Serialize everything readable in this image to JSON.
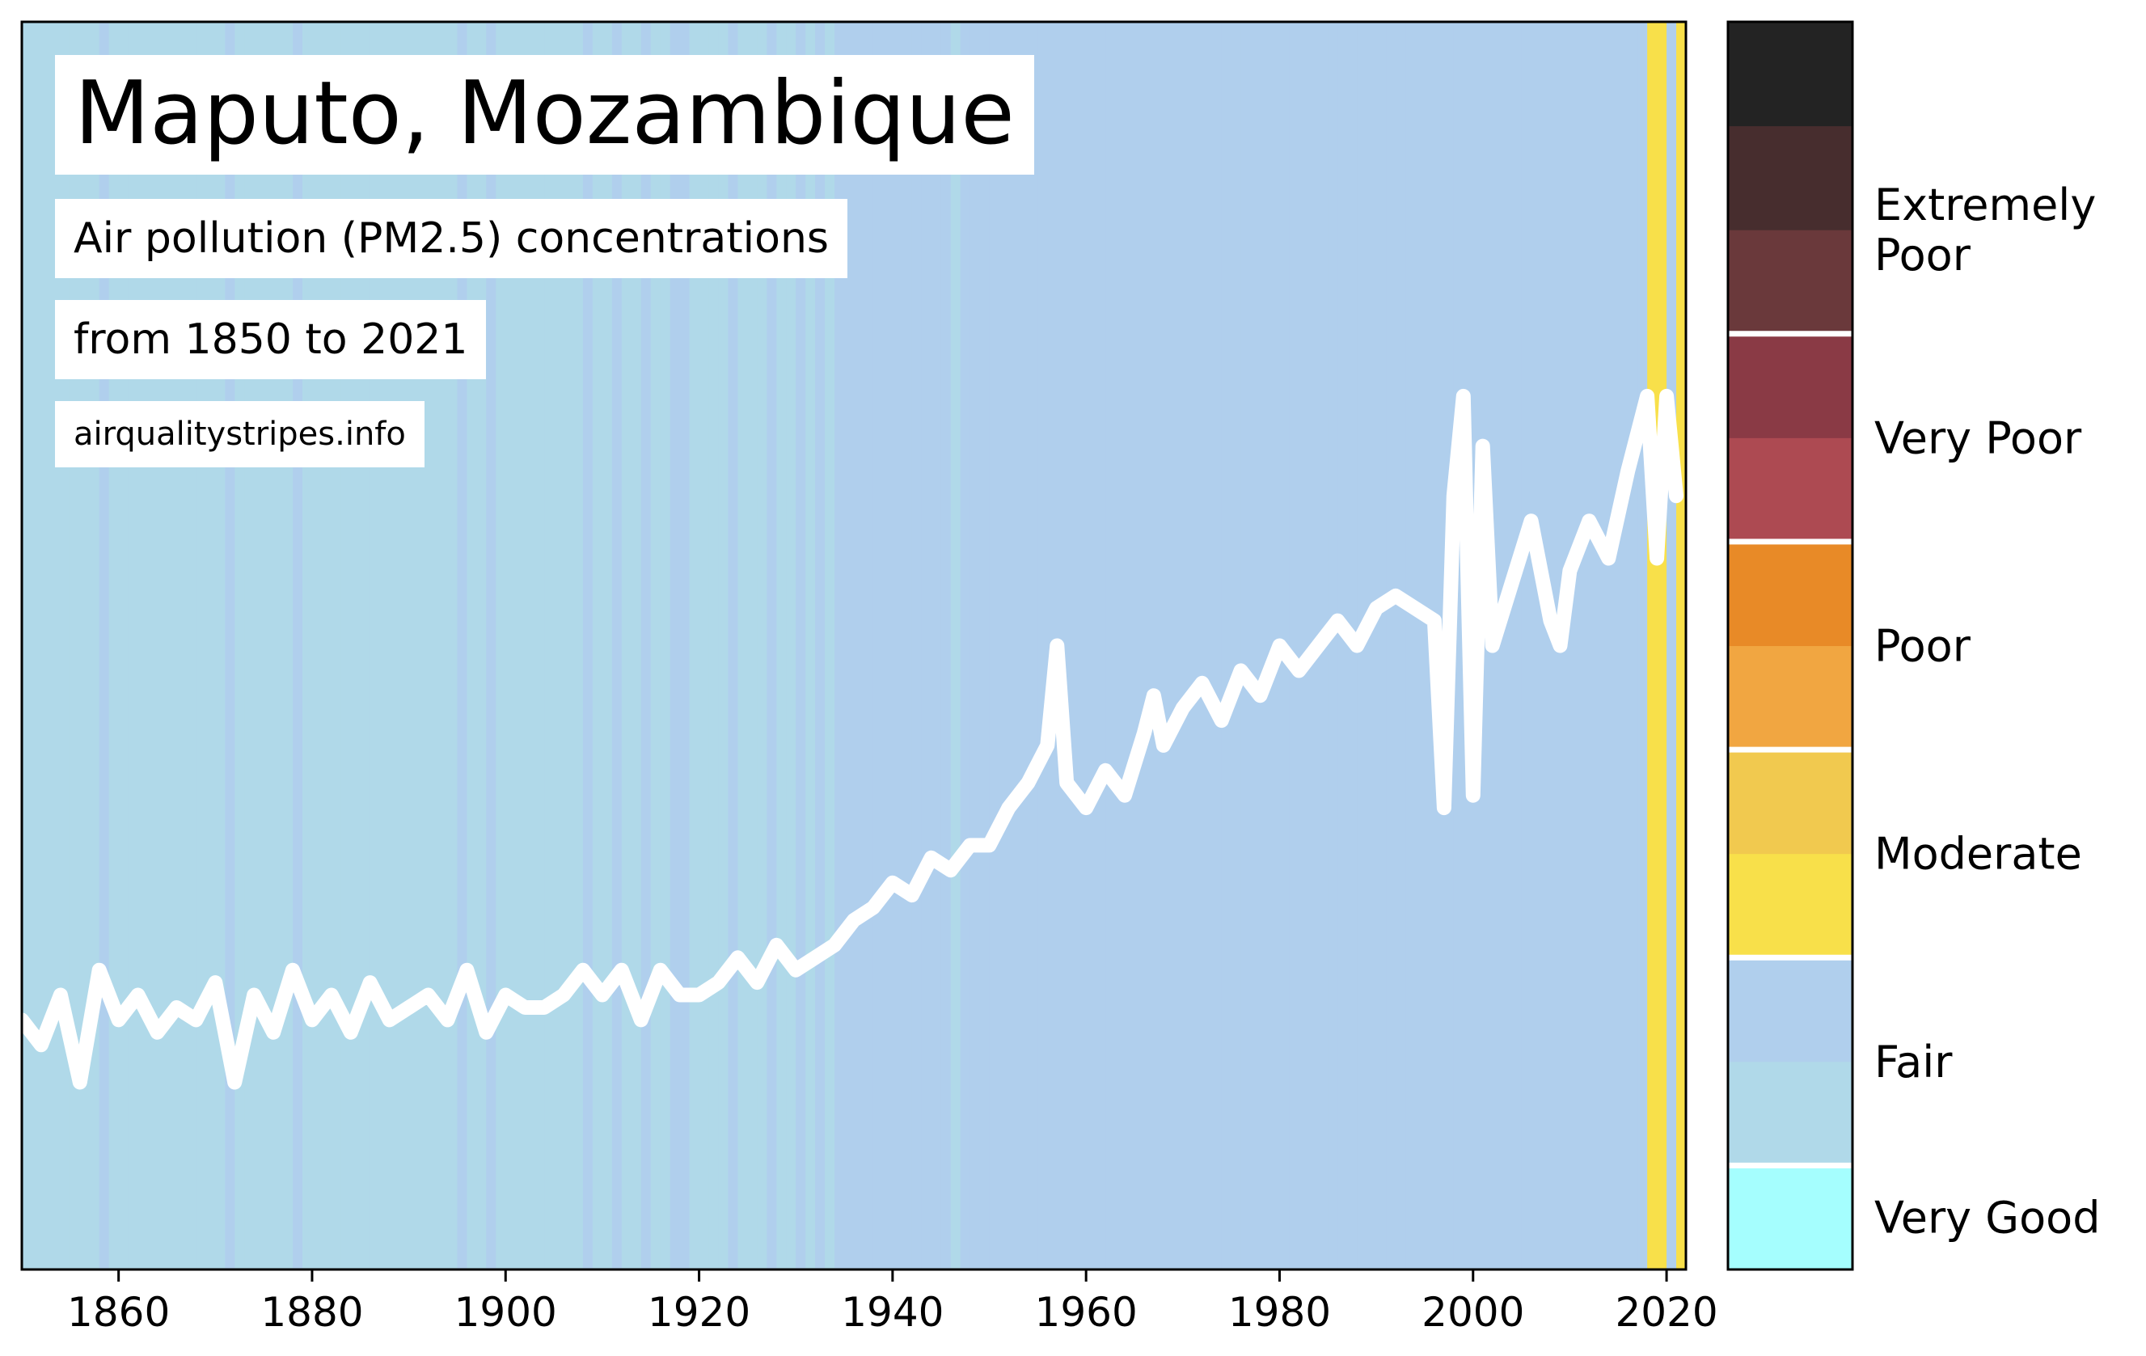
{
  "chart_data": {
    "type": "heatmap",
    "title": "Maputo, Mozambique",
    "subtitle_lines": [
      "Air pollution (PM2.5) concentrations",
      "from 1850 to 2021"
    ],
    "source": "airqualitystripes.info",
    "x_range": [
      1850,
      2022
    ],
    "x_ticks": [
      1860,
      1880,
      1900,
      1920,
      1940,
      1960,
      1980,
      2000,
      2020
    ],
    "x_tick_labels": [
      "1860",
      "1880",
      "1900",
      "1920",
      "1940",
      "1960",
      "1980",
      "2000",
      "2020"
    ],
    "stripes_default_category": "Fair (lower)",
    "stripes_fair_from_year": 1935,
    "stripes_fair_years_before_1935": [
      1858,
      1871,
      1878,
      1895,
      1898,
      1908,
      1911,
      1914,
      1917,
      1918,
      1923,
      1927,
      1930,
      1932,
      1934
    ],
    "stripes_fair_lower_years_after_1935": [
      1946
    ],
    "stripes_moderate_years": [
      2018,
      2019,
      2021
    ],
    "stripe_colors": {
      "very_good": "#a5fefe",
      "fair_lower": "#b0d9e9",
      "fair_upper": "#b0cfed",
      "moderate_lower": "#f8e04a",
      "moderate_upper": "#f1c94f"
    },
    "line_series": {
      "name": "",
      "color": "#ffffff",
      "x": [
        1850,
        1852,
        1854,
        1856,
        1858,
        1860,
        1862,
        1864,
        1866,
        1868,
        1870,
        1872,
        1874,
        1876,
        1878,
        1880,
        1882,
        1884,
        1886,
        1888,
        1890,
        1892,
        1894,
        1896,
        1898,
        1900,
        1902,
        1904,
        1906,
        1908,
        1910,
        1912,
        1914,
        1916,
        1918,
        1920,
        1922,
        1924,
        1926,
        1928,
        1930,
        1932,
        1934,
        1936,
        1938,
        1940,
        1942,
        1944,
        1946,
        1948,
        1950,
        1952,
        1954,
        1956,
        1957,
        1958,
        1960,
        1962,
        1964,
        1966,
        1967,
        1968,
        1970,
        1972,
        1974,
        1976,
        1978,
        1980,
        1982,
        1984,
        1986,
        1988,
        1990,
        1992,
        1994,
        1996,
        1997,
        1998,
        1999,
        2000,
        2001,
        2002,
        2004,
        2006,
        2008,
        2009,
        2010,
        2012,
        2014,
        2016,
        2018,
        2019,
        2020,
        2021
      ],
      "y": [
        0.2,
        0.18,
        0.22,
        0.15,
        0.24,
        0.2,
        0.22,
        0.19,
        0.21,
        0.2,
        0.23,
        0.15,
        0.22,
        0.19,
        0.24,
        0.2,
        0.22,
        0.19,
        0.23,
        0.2,
        0.21,
        0.22,
        0.2,
        0.24,
        0.19,
        0.22,
        0.21,
        0.21,
        0.22,
        0.24,
        0.22,
        0.24,
        0.2,
        0.24,
        0.22,
        0.22,
        0.23,
        0.25,
        0.23,
        0.26,
        0.24,
        0.25,
        0.26,
        0.28,
        0.29,
        0.31,
        0.3,
        0.33,
        0.32,
        0.34,
        0.34,
        0.37,
        0.39,
        0.42,
        0.5,
        0.39,
        0.37,
        0.4,
        0.38,
        0.43,
        0.46,
        0.42,
        0.45,
        0.47,
        0.44,
        0.48,
        0.46,
        0.5,
        0.48,
        0.5,
        0.52,
        0.5,
        0.53,
        0.54,
        0.53,
        0.52,
        0.37,
        0.62,
        0.7,
        0.38,
        0.66,
        0.5,
        0.55,
        0.6,
        0.52,
        0.5,
        0.56,
        0.6,
        0.57,
        0.64,
        0.7,
        0.57,
        0.7,
        0.62
      ]
    },
    "colorbar": {
      "categories": [
        "Very Good",
        "Fair",
        "Moderate",
        "Poor",
        "Very Poor",
        "Extremely Poor"
      ],
      "colors": [
        "#a5fefe",
        "#b0d9e9",
        "#b0cfed",
        "#f8e04a",
        "#f1c94f",
        "#f1a641",
        "#e88a27",
        "#ad4a52",
        "#8a3a45",
        "#6a393b",
        "#472d2e",
        "#232323"
      ]
    },
    "grid": false,
    "legend": "right"
  }
}
